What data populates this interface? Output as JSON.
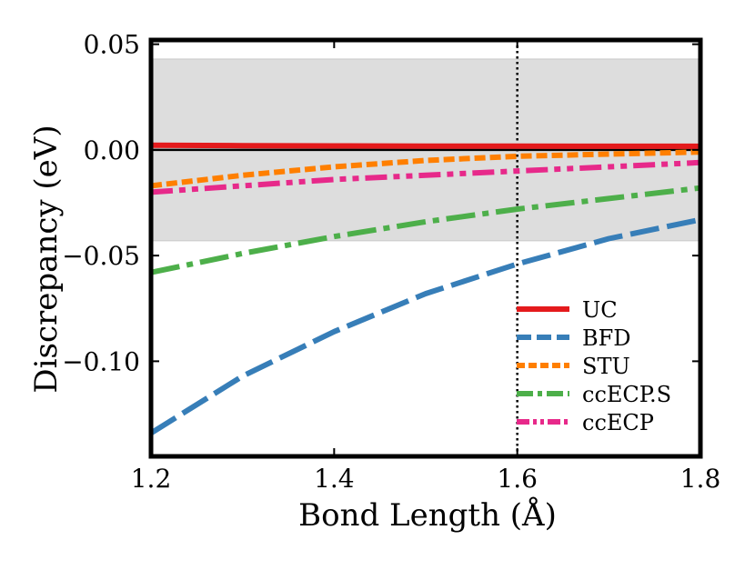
{
  "chart_data": {
    "type": "line",
    "title": "",
    "xlabel": "Bond Length (Å)",
    "ylabel": "Discrepancy (eV)",
    "xlim": [
      1.2,
      1.8
    ],
    "ylim": [
      -0.145,
      0.052
    ],
    "xticks": [
      1.2,
      1.4,
      1.6,
      1.8
    ],
    "xtick_labels": [
      "1.2",
      "1.4",
      "1.6",
      "1.8"
    ],
    "yticks": [
      0.05,
      0.0,
      -0.05,
      -0.1
    ],
    "ytick_labels": [
      "0.05",
      "0.00",
      "−0.05",
      "−0.10"
    ],
    "shaded_band": {
      "y_min": -0.043,
      "y_max": 0.043,
      "color": "#dddddd"
    },
    "reference_hline": {
      "y": 0.0,
      "color": "#000000"
    },
    "reference_vline": {
      "x": 1.6,
      "style": "dotted",
      "color": "#000000"
    },
    "legend_position": "bottom-right",
    "series": [
      {
        "name": "UC",
        "color": "#e41a1c",
        "linestyle": "solid",
        "x": [
          1.2,
          1.3,
          1.4,
          1.5,
          1.6,
          1.7,
          1.8
        ],
        "values": [
          0.0022,
          0.002,
          0.0019,
          0.0018,
          0.0018,
          0.0017,
          0.0017
        ]
      },
      {
        "name": "BFD",
        "color": "#377eb8",
        "linestyle": "dashed",
        "x": [
          1.2,
          1.3,
          1.4,
          1.5,
          1.6,
          1.7,
          1.8
        ],
        "values": [
          -0.134,
          -0.107,
          -0.086,
          -0.068,
          -0.054,
          -0.042,
          -0.033
        ]
      },
      {
        "name": "STU",
        "color": "#ff7f00",
        "linestyle": "dotted",
        "x": [
          1.2,
          1.3,
          1.4,
          1.5,
          1.6,
          1.7,
          1.8
        ],
        "values": [
          -0.017,
          -0.012,
          -0.008,
          -0.005,
          -0.003,
          -0.002,
          -0.001
        ]
      },
      {
        "name": "ccECP.S",
        "color": "#4daf4a",
        "linestyle": "dashdot",
        "x": [
          1.2,
          1.3,
          1.4,
          1.5,
          1.6,
          1.7,
          1.8
        ],
        "values": [
          -0.058,
          -0.049,
          -0.041,
          -0.034,
          -0.028,
          -0.023,
          -0.018
        ]
      },
      {
        "name": "ccECP",
        "color": "#e7298a",
        "linestyle": "dashdotdot",
        "x": [
          1.2,
          1.3,
          1.4,
          1.5,
          1.6,
          1.7,
          1.8
        ],
        "values": [
          -0.02,
          -0.017,
          -0.014,
          -0.012,
          -0.01,
          -0.008,
          -0.006
        ]
      }
    ]
  }
}
